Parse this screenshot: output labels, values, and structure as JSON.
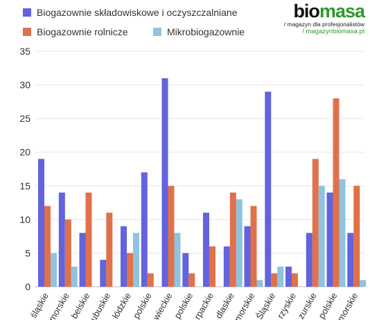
{
  "brand": {
    "logo_part1": "bio",
    "logo_part2": "masa",
    "tagline": "/ magazyn dla profesjonalistów",
    "url": "/ magazynbiomasa.pl"
  },
  "colors": {
    "series1": "#6363dd",
    "series2": "#e0714a",
    "series3": "#8fc3e0",
    "brand_green": "#2a9a2a",
    "axis_text": "#333333",
    "grid": "#e5e5e5"
  },
  "chart_data": {
    "type": "bar",
    "title": "",
    "xlabel": "",
    "ylabel": "",
    "ylim": [
      0,
      35
    ],
    "yticks": [
      0,
      5,
      10,
      15,
      20,
      25,
      30,
      35
    ],
    "grid": true,
    "legend_position": "top-left",
    "categories": [
      "śląskie",
      "omorskie",
      "belskie",
      "ubuskie",
      "łódzkie",
      "polskie",
      "wieckie",
      "polskie",
      "rpackie",
      "dlaskie",
      "morskie",
      "Śląskie",
      "rzyskie",
      "zurskie",
      "polskie",
      "morskie"
    ],
    "series": [
      {
        "name": "Biogazownie składowiskowe i oczyszczalniane",
        "color": "#6363dd",
        "values": [
          19,
          14,
          8,
          4,
          9,
          17,
          31,
          5,
          11,
          6,
          9,
          29,
          3,
          8,
          14,
          8
        ]
      },
      {
        "name": "Biogazownie rolnicze",
        "color": "#e0714a",
        "values": [
          12,
          10,
          14,
          11,
          5,
          2,
          15,
          2,
          6,
          14,
          12,
          2,
          2,
          19,
          28,
          15
        ]
      },
      {
        "name": "Mikrobiogazownie",
        "color": "#8fc3e0",
        "values": [
          5,
          3,
          0,
          0,
          8,
          0,
          8,
          0,
          0,
          13,
          1,
          3,
          0,
          15,
          16,
          1
        ]
      }
    ]
  }
}
